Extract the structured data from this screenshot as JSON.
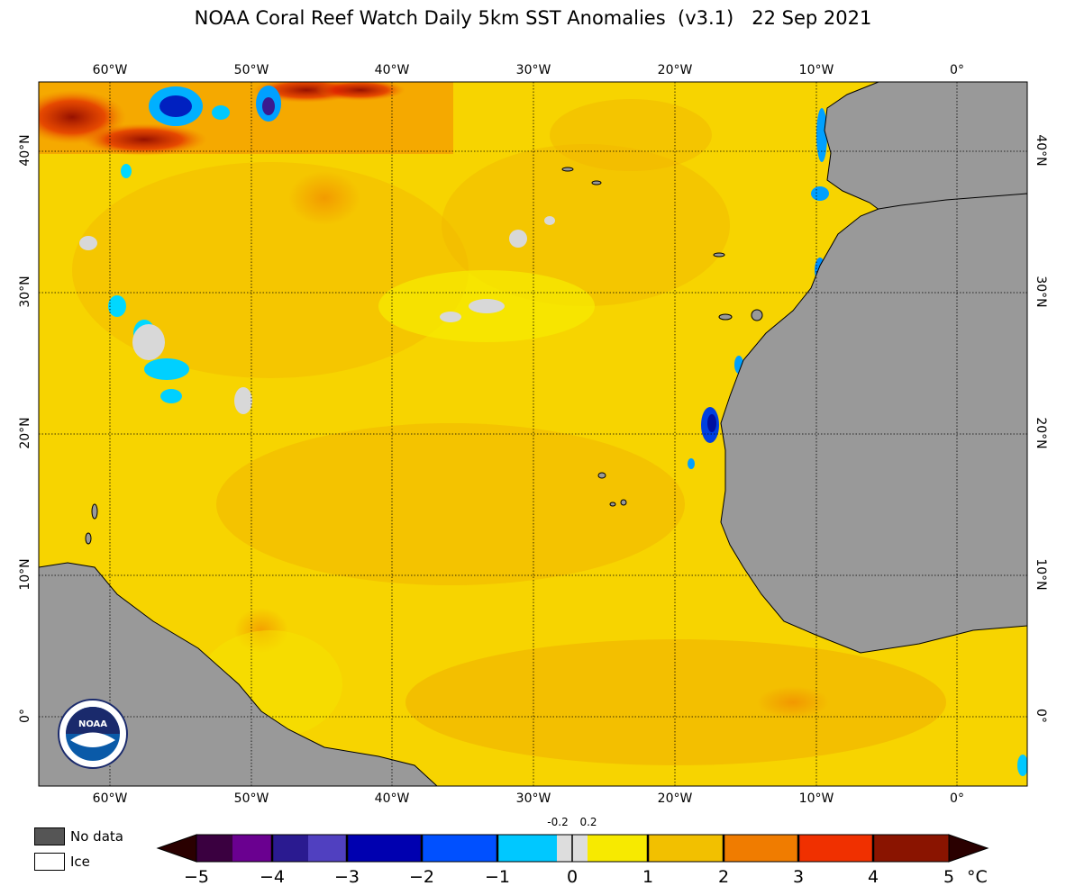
{
  "title": "NOAA Coral Reef Watch Daily 5km SST Anomalies  (v3.1)   22 Sep 2021",
  "map": {
    "lon_labels": [
      "60°W",
      "50°W",
      "40°W",
      "30°W",
      "20°W",
      "10°W",
      "0°"
    ],
    "lat_labels": [
      "40°N",
      "30°N",
      "20°N",
      "10°N",
      "0°"
    ],
    "land_color": "#999999",
    "ocean_base_color": "#f7d200",
    "logo_text": "NOAA"
  },
  "legend": {
    "no_data_label": "No data",
    "no_data_color": "#555555",
    "ice_label": "Ice",
    "ice_color": "#ffffff"
  },
  "colorbar": {
    "ticks": [
      "−5",
      "−4",
      "−3",
      "−2",
      "−1",
      "0",
      "1",
      "2",
      "3",
      "4",
      "5"
    ],
    "small_ticks": [
      "-0.2",
      "0.2"
    ],
    "unit": "°C",
    "range": [
      -5,
      5
    ]
  }
}
